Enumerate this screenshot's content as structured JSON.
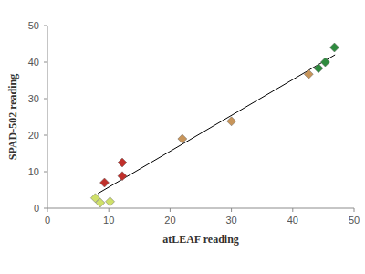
{
  "chart_data": {
    "type": "scatter",
    "x_label": "atLEAF reading",
    "y_label": "SPAD-502 reading",
    "xlim": [
      0,
      50
    ],
    "xticks": [
      0,
      10,
      20,
      30,
      40,
      50
    ],
    "ylim": [
      0,
      50
    ],
    "yticks": [
      0,
      10,
      20,
      30,
      40,
      50
    ],
    "grid": false,
    "series": [
      {
        "color": "#cfe06a",
        "marker": "diamond",
        "x": [
          7.8,
          8.6,
          10.2
        ],
        "values": [
          2.8,
          1.5,
          1.8
        ]
      },
      {
        "color": "#c0302b",
        "marker": "diamond",
        "x": [
          9.3,
          12.2,
          12.2
        ],
        "values": [
          7,
          8.8,
          12.5
        ]
      },
      {
        "color": "#c8955a",
        "marker": "diamond",
        "x": [
          22,
          30,
          42.6
        ],
        "values": [
          19,
          23.8,
          36.7
        ]
      },
      {
        "color": "#2e8b3e",
        "marker": "diamond",
        "x": [
          44.2,
          45.3,
          46.8
        ],
        "values": [
          38.3,
          40,
          44
        ]
      },
      {
        "type": "line",
        "color": "#000000",
        "line_style": "solid",
        "x": [
          8.2,
          46.9
        ],
        "values": [
          4,
          42
        ]
      }
    ]
  }
}
